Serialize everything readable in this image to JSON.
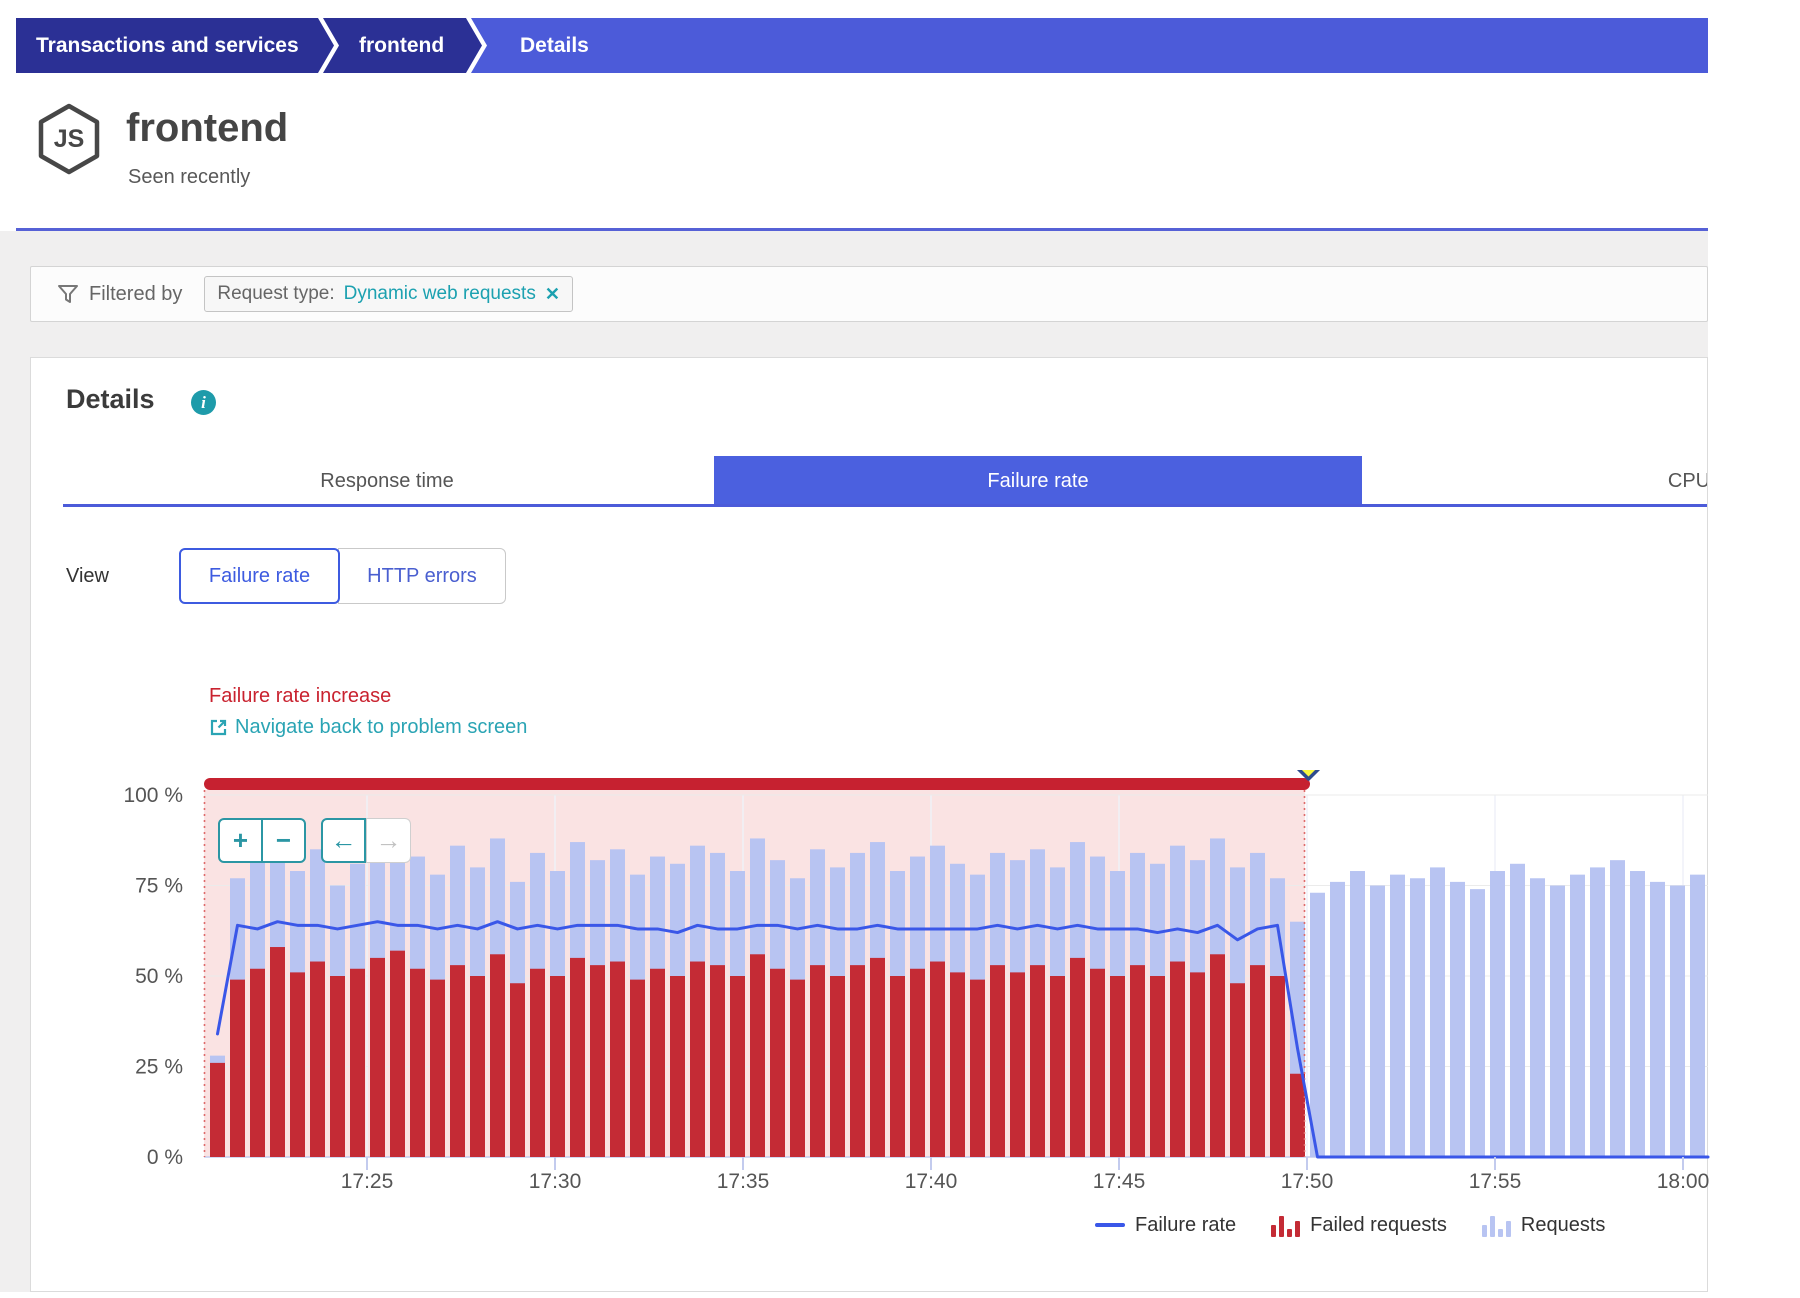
{
  "breadcrumb": {
    "items": [
      "Transactions and services",
      "frontend",
      "Details"
    ]
  },
  "header": {
    "title": "frontend",
    "subtitle": "Seen recently",
    "icon": "nodejs-js-hexagon"
  },
  "filter": {
    "label": "Filtered by",
    "chip_key": "Request type:",
    "chip_value": "Dynamic web requests",
    "close_glyph": "✕"
  },
  "details": {
    "heading": "Details",
    "info_glyph": "i"
  },
  "tabs": [
    {
      "label": "Response time",
      "selected": false
    },
    {
      "label": "Failure rate",
      "selected": true
    },
    {
      "label": "CPU",
      "selected": false
    }
  ],
  "view": {
    "label": "View",
    "options": [
      {
        "label": "Failure rate",
        "selected": true
      },
      {
        "label": "HTTP errors",
        "selected": false
      }
    ]
  },
  "annotation": {
    "title": "Failure rate increase",
    "link": "Navigate back to problem screen"
  },
  "chart_controls": {
    "zoom_in": "+",
    "zoom_out": "−",
    "pan_left": "←",
    "pan_right": "→"
  },
  "legend": [
    {
      "label": "Failure rate",
      "swatch": "line",
      "color": "#3A57E8"
    },
    {
      "label": "Failed requests",
      "swatch": "bars",
      "color": "#C42B35"
    },
    {
      "label": "Requests",
      "swatch": "bars",
      "color": "#B8C4F2"
    }
  ],
  "colors": {
    "breadcrumb_dark": "#2B3095",
    "breadcrumb_light": "#4C5BD9",
    "accent_blue": "#4B60DF",
    "teal": "#1CA1B0",
    "link_teal": "#2AA4B4",
    "bar_blue": "#B8C4F2",
    "bar_red": "#C42B35",
    "line_blue": "#3A57E8",
    "cap_red": "#C62130",
    "pink_overlay": "#FAE3E3",
    "dotted_red": "#DE6B6B",
    "grid": "#EBEBEB",
    "axis": "#C3CBEE",
    "arrow_fill": "#F8F740",
    "arrow_stroke": "#2E4C8E",
    "alert_red_text": "#C9222F"
  },
  "chart_data": {
    "type": "bar",
    "title": "Failure rate",
    "ylabel": "",
    "xlabel": "",
    "ylim": [
      0,
      100
    ],
    "grid": true,
    "legend_position": "bottom-right",
    "x_start": "17:21",
    "x_end": "18:00",
    "interval_seconds": 30,
    "x_tick_labels": [
      "17:25",
      "17:30",
      "17:35",
      "17:40",
      "17:45",
      "17:50",
      "17:55",
      "18:00"
    ],
    "y_tick_labels": [
      "100 %",
      "75 %",
      "50 %",
      "25 %",
      "0 %"
    ],
    "y_tick_values": [
      100,
      75,
      50,
      25,
      0
    ],
    "problem_window": {
      "from": "17:21",
      "to": "17:50",
      "cap_value": 100,
      "overlay": "pink",
      "annotation": "Failure rate increase"
    },
    "series": [
      {
        "name": "Requests",
        "type": "bar",
        "color": "#B8C4F2",
        "values": [
          28,
          77,
          82,
          88,
          79,
          85,
          75,
          81,
          84,
          90,
          83,
          78,
          86,
          80,
          88,
          76,
          84,
          79,
          87,
          82,
          85,
          78,
          83,
          81,
          86,
          84,
          79,
          88,
          82,
          77,
          85,
          80,
          84,
          87,
          79,
          83,
          86,
          81,
          78,
          84,
          82,
          85,
          80,
          87,
          83,
          79,
          84,
          81,
          86,
          82,
          88,
          80,
          84,
          77,
          65,
          73,
          76,
          79,
          75,
          78,
          77,
          80,
          76,
          74,
          79,
          81,
          77,
          75,
          78,
          80,
          82,
          79,
          76,
          75,
          78
        ]
      },
      {
        "name": "Failed requests",
        "type": "bar",
        "color": "#C42B35",
        "values": [
          26,
          49,
          52,
          58,
          51,
          54,
          50,
          52,
          55,
          57,
          52,
          49,
          53,
          50,
          56,
          48,
          52,
          50,
          55,
          53,
          54,
          49,
          52,
          50,
          54,
          53,
          50,
          56,
          52,
          49,
          53,
          50,
          53,
          55,
          50,
          52,
          54,
          51,
          49,
          53,
          51,
          53,
          50,
          55,
          52,
          50,
          53,
          50,
          54,
          51,
          56,
          48,
          53,
          50,
          23,
          0,
          0,
          0,
          0,
          0,
          0,
          0,
          0,
          0,
          0,
          0,
          0,
          0,
          0,
          0,
          0,
          0,
          0,
          0,
          0
        ]
      },
      {
        "name": "Failure rate",
        "type": "line",
        "color": "#3A57E8",
        "values": [
          34,
          64,
          63,
          65,
          64,
          64,
          63,
          64,
          65,
          64,
          64,
          63,
          64,
          63,
          65,
          63,
          64,
          63,
          64,
          64,
          64,
          63,
          63,
          62,
          64,
          63,
          63,
          64,
          64,
          63,
          64,
          63,
          63,
          64,
          63,
          63,
          63,
          63,
          63,
          64,
          63,
          64,
          63,
          64,
          63,
          63,
          63,
          62,
          63,
          62,
          64,
          60,
          63,
          64,
          30,
          0,
          0,
          0,
          0,
          0,
          0,
          0,
          0,
          0,
          0,
          0,
          0,
          0,
          0,
          0,
          0,
          0,
          0,
          0,
          0
        ]
      }
    ]
  }
}
